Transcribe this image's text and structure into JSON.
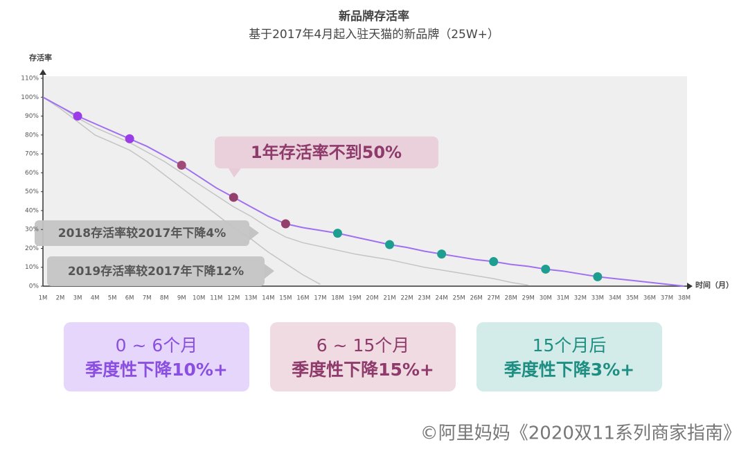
{
  "chart_data": {
    "type": "line",
    "title": "新品牌存活率",
    "subtitle": "基于2017年4月起入驻天猫的新品牌（25W+）",
    "y_label": "存活率",
    "x_label": "时间（月）",
    "categories": [
      "1M",
      "2M",
      "3M",
      "4M",
      "5M",
      "6M",
      "7M",
      "8M",
      "9M",
      "10M",
      "11M",
      "12M",
      "13M",
      "14M",
      "15M",
      "16M",
      "17M",
      "18M",
      "19M",
      "20M",
      "21M",
      "22M",
      "23M",
      "24M",
      "25M",
      "26M",
      "27M",
      "28M",
      "29M",
      "30M",
      "31M",
      "32M",
      "33M",
      "34M",
      "35M",
      "36M",
      "37M",
      "38M"
    ],
    "series": [
      {
        "color": "#a070f0",
        "values": [
          100,
          95,
          90,
          86,
          82,
          78,
          74,
          69,
          64,
          58,
          52,
          47,
          42,
          37,
          33,
          31,
          29.5,
          28,
          26,
          24,
          22,
          20.5,
          18.5,
          17,
          15.5,
          14,
          13,
          11.5,
          10.5,
          9,
          8,
          6.5,
          5,
          4,
          3,
          2,
          1,
          0
        ],
        "marker_colors": [
          null,
          null,
          "#9a3de6",
          null,
          null,
          "#9a3de6",
          null,
          null,
          "#a04a7a",
          null,
          null,
          "#93406d",
          null,
          null,
          "#93406d",
          null,
          null,
          "#1e9e91",
          null,
          null,
          "#1e9e91",
          null,
          null,
          "#1e9e91",
          null,
          null,
          "#1e9e91",
          null,
          null,
          "#1e9e91",
          null,
          null,
          "#1e9e91",
          null,
          null,
          null,
          null,
          null
        ]
      },
      {
        "color": "#c4c4c4",
        "values": [
          100,
          95,
          89,
          84,
          80,
          76,
          71,
          66,
          60,
          54,
          48,
          42,
          37,
          31,
          26,
          23,
          21,
          19,
          17,
          15.5,
          14,
          12,
          10,
          8.5,
          7,
          5.5,
          4,
          2,
          0.5,
          null,
          null,
          null,
          null,
          null,
          null,
          null,
          null,
          null
        ]
      },
      {
        "color": "#c4c4c4",
        "values": [
          100,
          94,
          87,
          80,
          76,
          72,
          66,
          59,
          52,
          45,
          38,
          31,
          25,
          18,
          12,
          6,
          1,
          null,
          null,
          null,
          null,
          null,
          null,
          null,
          null,
          null,
          null,
          null,
          null,
          null,
          null,
          null,
          null,
          null,
          null,
          null,
          null,
          null
        ]
      }
    ],
    "ylim": [
      0,
      110
    ],
    "yticks": [
      {
        "value": 0,
        "label": "0%"
      },
      {
        "value": 10,
        "label": "10%"
      },
      {
        "value": 20,
        "label": "20%"
      },
      {
        "value": 30,
        "label": "30%"
      },
      {
        "value": 40,
        "label": "40%"
      },
      {
        "value": 50,
        "label": "50%"
      },
      {
        "value": 60,
        "label": "60%"
      },
      {
        "value": 70,
        "label": "70%"
      },
      {
        "value": 80,
        "label": "80%"
      },
      {
        "value": 90,
        "label": "90%"
      },
      {
        "value": 100,
        "label": "100%"
      },
      {
        "value": 110,
        "label": "110%"
      }
    ],
    "annotations": [
      "1年存活率不到50%",
      "2018存活率较2017年下降4%",
      "2019存活率较2017年下降12%"
    ],
    "cards": [
      {
        "line1": "0 ~ 6个月",
        "line2": "季度性下降10%+"
      },
      {
        "line1": "6 ~ 15个月",
        "line2": "季度性下降15%+"
      },
      {
        "line1": "15个月后",
        "line2": "季度性下降3%+"
      }
    ],
    "footer": "©阿里妈妈《2020双11系列商家指南》"
  }
}
